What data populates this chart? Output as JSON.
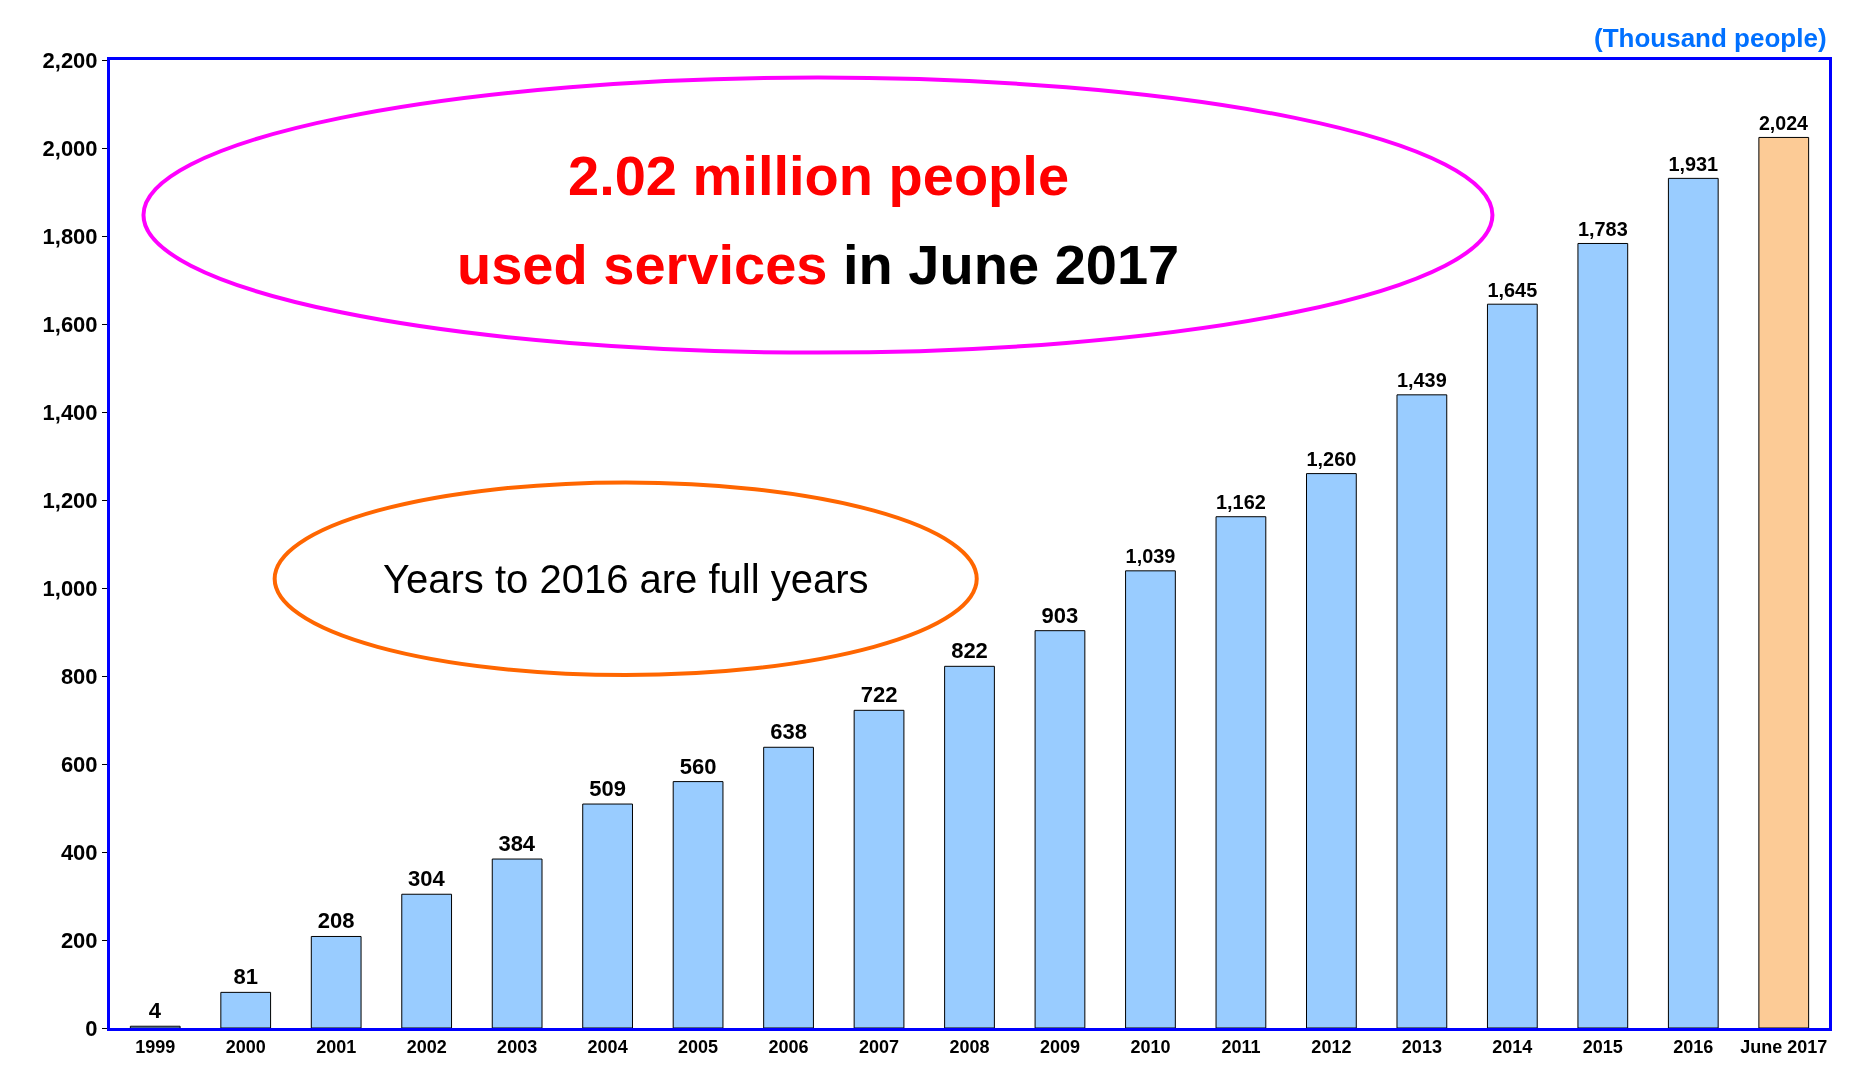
{
  "chart_data": {
    "type": "bar",
    "ylabel": "(Thousand people)",
    "categories": [
      "1999",
      "2000",
      "2001",
      "2002",
      "2003",
      "2004",
      "2005",
      "2006",
      "2007",
      "2008",
      "2009",
      "2010",
      "2011",
      "2012",
      "2013",
      "2014",
      "2015",
      "2016",
      "June 2017"
    ],
    "values": [
      4,
      81,
      208,
      304,
      384,
      509,
      560,
      638,
      722,
      822,
      903,
      1039,
      1162,
      1260,
      1439,
      1645,
      1783,
      1931,
      2024
    ],
    "value_labels": [
      "4",
      "81",
      "208",
      "304",
      "384",
      "509",
      "560",
      "638",
      "722",
      "822",
      "903",
      "1,039",
      "1,162",
      "1,260",
      "1,439",
      "1,645",
      "1,783",
      "1,931",
      "2,024"
    ],
    "colors": [
      "#99ccff",
      "#99ccff",
      "#99ccff",
      "#99ccff",
      "#99ccff",
      "#99ccff",
      "#99ccff",
      "#99ccff",
      "#99ccff",
      "#99ccff",
      "#99ccff",
      "#99ccff",
      "#99ccff",
      "#99ccff",
      "#99ccff",
      "#99ccff",
      "#99ccff",
      "#99ccff",
      "#fccb96"
    ],
    "ylim": [
      0,
      2200
    ],
    "yticks": [
      {
        "value": 0,
        "label": "0"
      },
      {
        "value": 200,
        "label": "200"
      },
      {
        "value": 400,
        "label": "400"
      },
      {
        "value": 600,
        "label": "600"
      },
      {
        "value": 800,
        "label": "800"
      },
      {
        "value": 1000,
        "label": "1,000"
      },
      {
        "value": 1200,
        "label": "1,200"
      },
      {
        "value": 1400,
        "label": "1,400"
      },
      {
        "value": 1600,
        "label": "1,600"
      },
      {
        "value": 1800,
        "label": "1,800"
      },
      {
        "value": 2000,
        "label": "2,000"
      },
      {
        "value": 2200,
        "label": "2,200"
      }
    ],
    "annotations": [
      "2.02 million people",
      "used services",
      "in June 2017",
      "Years to 2016 are full years"
    ],
    "legend": false
  }
}
